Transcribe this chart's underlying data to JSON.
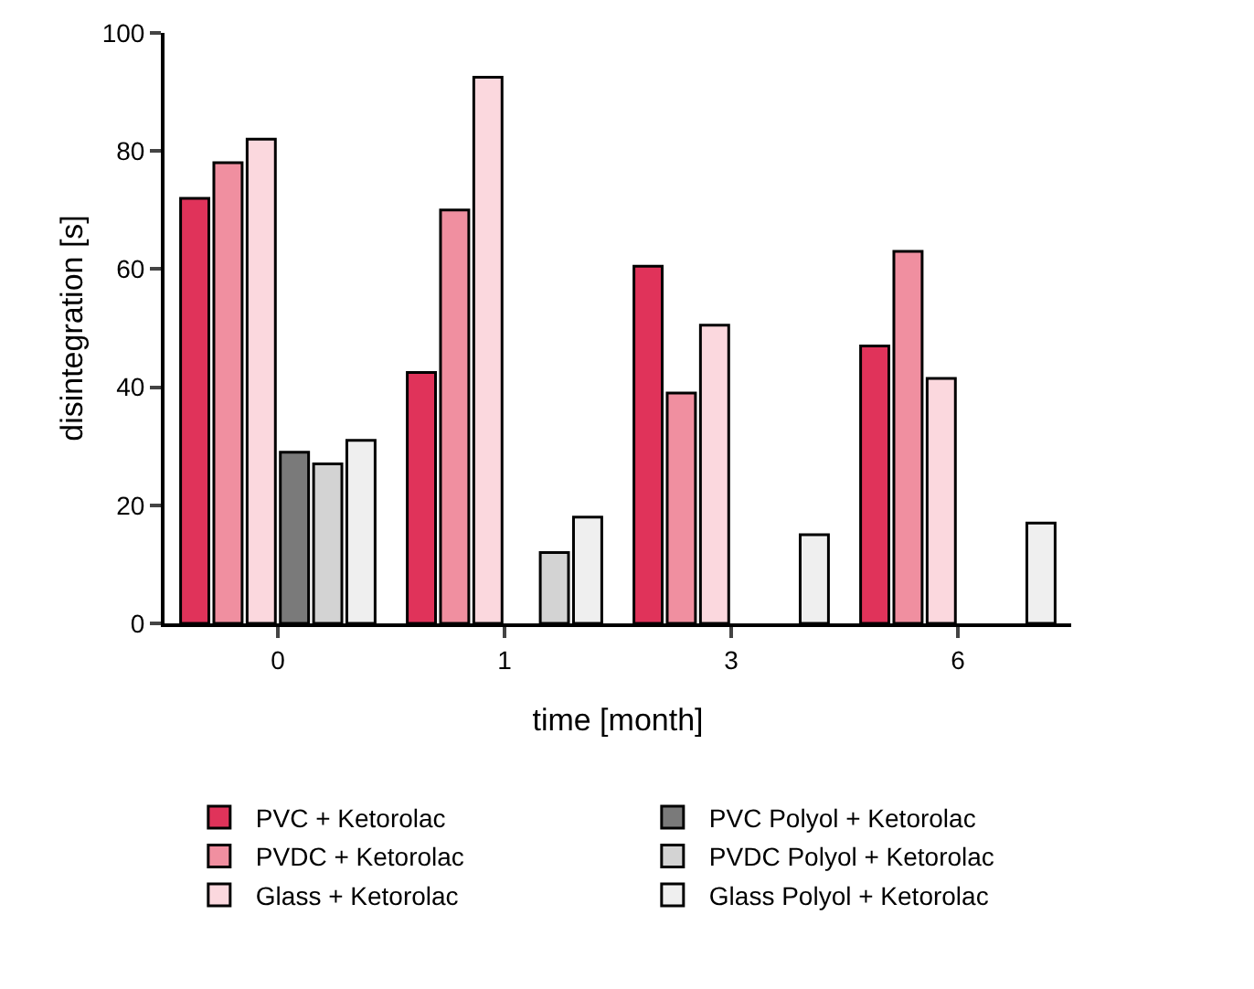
{
  "chart_data": {
    "type": "bar",
    "xlabel": "time [month]",
    "ylabel": "disintegration [s]",
    "categories": [
      "0",
      "1",
      "3",
      "6"
    ],
    "ylim": [
      0,
      100
    ],
    "yticks": [
      0,
      20,
      40,
      60,
      80,
      100
    ],
    "grid": false,
    "legend": "bottom",
    "series": [
      {
        "name": "PVC + Ketorolac",
        "color": "#e0335a",
        "values": [
          72,
          42.5,
          60.5,
          47
        ]
      },
      {
        "name": "PVDC + Ketorolac",
        "color": "#f08fa0",
        "values": [
          78,
          70,
          39,
          63
        ]
      },
      {
        "name": "Glass + Ketorolac",
        "color": "#fbd8de",
        "values": [
          82,
          92.5,
          50.5,
          41.5
        ]
      },
      {
        "name": "PVC Polyol + Ketorolac",
        "color": "#7a7a7a",
        "values": [
          29,
          null,
          null,
          null
        ]
      },
      {
        "name": "PVDC Polyol + Ketorolac",
        "color": "#d3d3d3",
        "values": [
          27,
          12,
          null,
          null
        ]
      },
      {
        "name": "Glass Polyol + Ketorolac",
        "color": "#efefef",
        "values": [
          31,
          18,
          15,
          17
        ]
      }
    ]
  }
}
